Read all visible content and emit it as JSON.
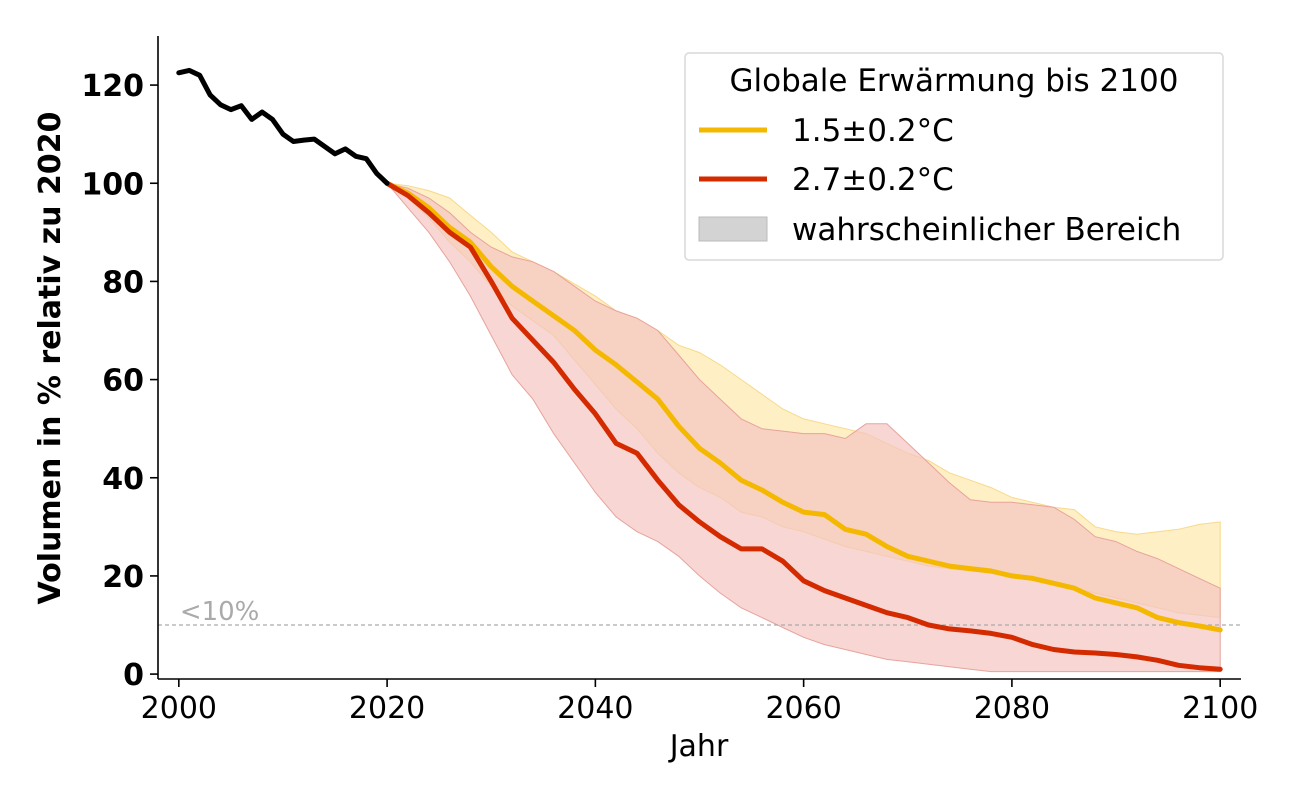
{
  "chart_data": {
    "type": "line",
    "xlabel": "Jahr",
    "ylabel": "Volumen in % relativ zu 2020",
    "xlim": [
      1998,
      2102
    ],
    "ylim": [
      -1,
      130
    ],
    "xticks": [
      2000,
      2020,
      2040,
      2060,
      2080,
      2100
    ],
    "yticks": [
      0,
      20,
      40,
      60,
      80,
      100,
      120
    ],
    "grid": false,
    "legend": {
      "title": "Globale Erwärmung bis 2100",
      "placement": "top-right",
      "range_label": "wahrscheinlicher Bereich",
      "range_color": "#d3d3d3"
    },
    "reference_line": {
      "y": 10,
      "label": "<10%",
      "color": "#aaaaaa"
    },
    "historical": {
      "color": "#000000",
      "x": [
        2000,
        2001,
        2002,
        2003,
        2004,
        2005,
        2006,
        2007,
        2008,
        2009,
        2010,
        2011,
        2012,
        2013,
        2014,
        2015,
        2016,
        2017,
        2018,
        2019,
        2020
      ],
      "y": [
        122.5,
        123,
        122,
        118,
        116,
        115,
        115.8,
        113,
        114.5,
        113,
        110,
        108.5,
        108.8,
        109,
        107.5,
        106,
        107,
        105.5,
        105,
        102,
        100
      ]
    },
    "series": [
      {
        "name": "1.5±0.2°C",
        "color": "#f5b800",
        "band_color": "#fde9b0",
        "x": [
          2020,
          2022,
          2024,
          2026,
          2028,
          2030,
          2032,
          2034,
          2036,
          2038,
          2040,
          2042,
          2044,
          2046,
          2048,
          2050,
          2052,
          2054,
          2056,
          2058,
          2060,
          2062,
          2064,
          2066,
          2068,
          2070,
          2072,
          2074,
          2076,
          2078,
          2080,
          2082,
          2084,
          2086,
          2088,
          2090,
          2092,
          2094,
          2096,
          2098,
          2100
        ],
        "y": [
          100,
          98,
          95,
          91,
          88,
          83,
          79,
          76,
          73,
          70,
          66,
          63,
          59.5,
          56,
          50.5,
          46,
          43,
          39.5,
          37.5,
          35,
          33,
          32.5,
          29.5,
          28.5,
          26,
          24,
          23,
          22,
          21.5,
          21,
          20,
          19.5,
          18.5,
          17.5,
          15.5,
          14.5,
          13.5,
          11.5,
          10.5,
          9.8,
          9
        ],
        "lower": [
          100,
          97,
          93,
          88,
          84,
          79,
          75,
          72,
          69,
          64,
          59,
          54,
          50,
          45,
          41,
          38,
          36,
          33,
          32,
          30,
          29,
          27.5,
          26,
          25,
          24,
          23,
          22,
          21.5,
          21,
          20.5,
          20,
          19.5,
          18.5,
          17.5,
          16.5,
          15.5,
          14.5,
          13.5,
          12.5,
          12,
          11.5
        ],
        "upper": [
          100,
          99.5,
          98.5,
          97,
          93.5,
          90,
          86,
          84,
          82,
          79.5,
          77,
          74,
          72.5,
          70,
          67,
          65.5,
          63,
          60,
          57,
          54,
          52,
          51,
          50,
          49,
          47,
          45,
          43.5,
          41,
          39.5,
          38,
          36,
          35,
          34,
          33.5,
          30,
          29,
          28.5,
          29,
          29.5,
          30.5,
          31
        ]
      },
      {
        "name": "2.7±0.2°C",
        "color": "#d42a00",
        "band_color": "#f3c4c0",
        "x": [
          2020,
          2022,
          2024,
          2026,
          2028,
          2030,
          2032,
          2034,
          2036,
          2038,
          2040,
          2042,
          2044,
          2046,
          2048,
          2050,
          2052,
          2054,
          2056,
          2058,
          2060,
          2062,
          2064,
          2066,
          2068,
          2070,
          2072,
          2074,
          2076,
          2078,
          2080,
          2082,
          2084,
          2086,
          2088,
          2090,
          2092,
          2094,
          2096,
          2098,
          2100
        ],
        "y": [
          100,
          97.5,
          94,
          90,
          87,
          80,
          72.5,
          68,
          63.5,
          58,
          53,
          47,
          45,
          39.5,
          34.5,
          31,
          28,
          25.5,
          25.5,
          23,
          19,
          17,
          15.5,
          14,
          12.5,
          11.5,
          10,
          9.2,
          8.8,
          8.3,
          7.5,
          6,
          5,
          4.5,
          4.3,
          4,
          3.5,
          2.8,
          1.8,
          1.3,
          1
        ],
        "lower": [
          100,
          95,
          90,
          84,
          77,
          69,
          61,
          56,
          49,
          43,
          37,
          32,
          29,
          27,
          24,
          20,
          16.5,
          13.5,
          11.5,
          9.5,
          7.5,
          6,
          5,
          4,
          3,
          2.5,
          2,
          1.5,
          1,
          0.5,
          0.5,
          0.5,
          0.5,
          0.5,
          0.5,
          0.5,
          0.5,
          0.5,
          0.5,
          0.5,
          0.5
        ],
        "upper": [
          100,
          99,
          97,
          94,
          90,
          87,
          85,
          84,
          82,
          79,
          76,
          74,
          72.5,
          70,
          65,
          60,
          56,
          52,
          50,
          49.5,
          49,
          49,
          48,
          51,
          51,
          47,
          43,
          39,
          35.5,
          35,
          35,
          34.5,
          34,
          31.5,
          28,
          27,
          25,
          23.5,
          21.5,
          19.5,
          17.5
        ]
      }
    ]
  }
}
